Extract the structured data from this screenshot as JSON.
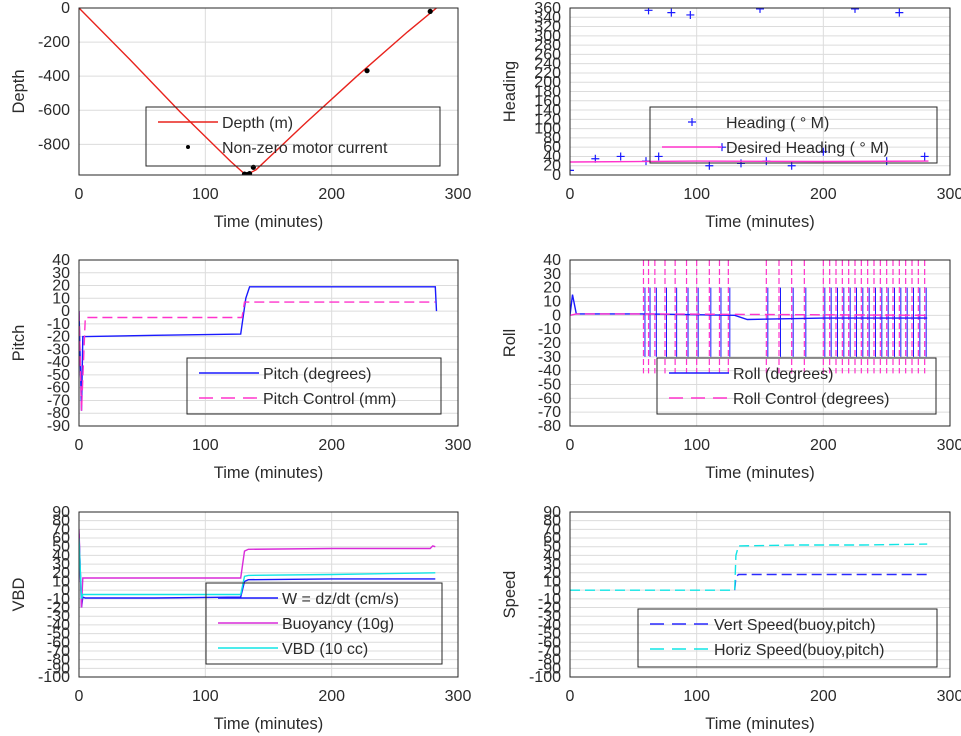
{
  "chart_data": [
    {
      "type": "line",
      "xlabel": "Time (minutes)",
      "ylabel": "Depth",
      "xlim": [
        0,
        300
      ],
      "ylim": [
        -980,
        0
      ],
      "xticks": [
        "0",
        "100",
        "200",
        "300"
      ],
      "yticks": [
        "0",
        "-200",
        "-400",
        "-600",
        "-800"
      ],
      "grid": true,
      "legend_position": "bottom-center",
      "series": [
        {
          "name": "Depth (m)",
          "kind": "line",
          "color": "#e8231d",
          "x": [
            0,
            40,
            80,
            120,
            132,
            140,
            180,
            220,
            260,
            283
          ],
          "y": [
            0,
            -300,
            -610,
            -900,
            -980,
            -950,
            -670,
            -400,
            -140,
            0
          ]
        },
        {
          "name": "Non-zero motor current",
          "kind": "points",
          "color": "#000000",
          "x": [
            131,
            133,
            135,
            138,
            228,
            278
          ],
          "y": [
            -975,
            -978,
            -972,
            -935,
            -368,
            -20
          ]
        }
      ]
    },
    {
      "type": "scatter",
      "xlabel": "Time (minutes)",
      "ylabel": "Heading",
      "xlim": [
        0,
        300
      ],
      "ylim": [
        0,
        360
      ],
      "xticks": [
        "0",
        "100",
        "200",
        "300"
      ],
      "yticks": [
        "0",
        "20",
        "40",
        "60",
        "80",
        "100",
        "120",
        "140",
        "160",
        "180",
        "200",
        "220",
        "240",
        "260",
        "280",
        "300",
        "320",
        "340",
        "360"
      ],
      "grid": true,
      "legend_position": "bottom-right",
      "series": [
        {
          "name": "Heading ( ° M)",
          "kind": "plus",
          "color": "#1a1aff",
          "x": [
            0,
            20,
            40,
            60,
            62,
            70,
            80,
            95,
            110,
            120,
            135,
            150,
            155,
            175,
            200,
            225,
            250,
            260,
            280
          ],
          "y": [
            10,
            35,
            40,
            30,
            355,
            40,
            350,
            345,
            20,
            60,
            25,
            358,
            30,
            20,
            50,
            358,
            30,
            350,
            40
          ]
        },
        {
          "name": "Desired Heading ( ° M)",
          "kind": "line",
          "color": "#ff33cc",
          "x": [
            0,
            100,
            200,
            283
          ],
          "y": [
            28,
            30,
            29,
            30
          ]
        }
      ]
    },
    {
      "type": "line",
      "xlabel": "Time (minutes)",
      "ylabel": "Pitch",
      "xlim": [
        0,
        300
      ],
      "ylim": [
        -90,
        40
      ],
      "xticks": [
        "0",
        "100",
        "200",
        "300"
      ],
      "yticks": [
        "40",
        "30",
        "20",
        "10",
        "0",
        "-10",
        "-20",
        "-30",
        "-40",
        "-50",
        "-60",
        "-70",
        "-80",
        "-90"
      ],
      "grid": true,
      "legend_position": "bottom-right",
      "series": [
        {
          "name": "Pitch (degrees)",
          "kind": "line",
          "color": "#1a1aff",
          "x": [
            0,
            2,
            3,
            5,
            60,
            128,
            132,
            135,
            200,
            282,
            283
          ],
          "y": [
            0,
            -78,
            -20,
            -20,
            -19,
            -18,
            10,
            19,
            19,
            19,
            0
          ]
        },
        {
          "name": "Pitch Control (mm)",
          "kind": "dash",
          "color": "#ff33cc",
          "x": [
            0,
            2,
            5,
            129,
            131,
            282
          ],
          "y": [
            0,
            -78,
            -5,
            -5,
            7,
            7
          ]
        }
      ]
    },
    {
      "type": "line",
      "xlabel": "Time (minutes)",
      "ylabel": "Roll",
      "xlim": [
        0,
        300
      ],
      "ylim": [
        -80,
        40
      ],
      "xticks": [
        "0",
        "100",
        "200",
        "300"
      ],
      "yticks": [
        "40",
        "30",
        "20",
        "10",
        "0",
        "-10",
        "-20",
        "-30",
        "-40",
        "-50",
        "-60",
        "-70",
        "-80"
      ],
      "grid": true,
      "legend_position": "bottom-right",
      "series": [
        {
          "name": "Roll (degrees)",
          "kind": "line",
          "color": "#1a1aff",
          "x": [
            0,
            2,
            5,
            60,
            130,
            140,
            200,
            282
          ],
          "y": [
            0,
            15,
            1,
            1,
            0,
            -3,
            -2,
            -2
          ]
        },
        {
          "name": "Roll Control (degrees)",
          "kind": "dash",
          "color": "#ff33cc",
          "x": [
            0,
            5,
            60,
            282
          ],
          "y": [
            0,
            1,
            1,
            0
          ]
        }
      ],
      "spike_times": [
        58,
        62,
        67,
        75,
        83,
        92,
        100,
        110,
        118,
        125,
        155,
        165,
        175,
        185,
        200,
        205,
        210,
        215,
        220,
        225,
        230,
        235,
        240,
        245,
        250,
        255,
        260,
        265,
        270,
        275,
        280
      ]
    },
    {
      "type": "line",
      "xlabel": "Time (minutes)",
      "ylabel": "VBD",
      "xlim": [
        0,
        300
      ],
      "ylim": [
        -100,
        90
      ],
      "xticks": [
        "0",
        "100",
        "200",
        "300"
      ],
      "yticks": [
        "90",
        "80",
        "70",
        "60",
        "50",
        "40",
        "30",
        "20",
        "10",
        "0",
        "-10",
        "-20",
        "-30",
        "-40",
        "-50",
        "-60",
        "-70",
        "-80",
        "-90",
        "-100"
      ],
      "grid": true,
      "legend_position": "bottom-right",
      "series": [
        {
          "name": "W = dz/dt (cm/s)",
          "kind": "line",
          "color": "#1a1aff",
          "x": [
            0,
            2,
            3,
            5,
            60,
            128,
            131,
            134,
            200,
            282
          ],
          "y": [
            65,
            -20,
            -8,
            -9,
            -9,
            -8,
            10,
            12,
            13,
            13
          ]
        },
        {
          "name": "Buoyancy (10g)",
          "kind": "line",
          "color": "#d92bd9",
          "x": [
            0,
            2,
            3,
            5,
            60,
            128,
            131,
            134,
            200,
            278,
            280,
            282
          ],
          "y": [
            70,
            -20,
            14,
            14,
            14,
            14,
            45,
            47,
            48,
            48,
            51,
            50
          ]
        },
        {
          "name": "VBD (10 cc)",
          "kind": "line",
          "color": "#11e5e5",
          "x": [
            0,
            2,
            3,
            5,
            60,
            128,
            131,
            134,
            200,
            282
          ],
          "y": [
            60,
            -10,
            -5,
            -5,
            -5,
            -5,
            16,
            17,
            18,
            20
          ]
        }
      ]
    },
    {
      "type": "line",
      "xlabel": "Time (minutes)",
      "ylabel": "Speed",
      "xlim": [
        0,
        300
      ],
      "ylim": [
        -100,
        90
      ],
      "xticks": [
        "0",
        "100",
        "200",
        "300"
      ],
      "yticks": [
        "90",
        "80",
        "70",
        "60",
        "50",
        "40",
        "30",
        "20",
        "10",
        "0",
        "-10",
        "-20",
        "-30",
        "-40",
        "-50",
        "-60",
        "-70",
        "-80",
        "-90",
        "-100"
      ],
      "grid": true,
      "legend_position": "bottom-right",
      "series": [
        {
          "name": "Vert Speed(buoy,pitch)",
          "kind": "dash",
          "color": "#2a2aff",
          "x": [
            130,
            131,
            133,
            180,
            230,
            282
          ],
          "y": [
            0,
            15,
            18,
            18,
            18,
            18
          ]
        },
        {
          "name": "Horiz Speed(buoy,pitch)",
          "kind": "dash",
          "color": "#11e5e5",
          "x": [
            0,
            130,
            131,
            133,
            180,
            230,
            282
          ],
          "y": [
            0,
            0,
            40,
            51,
            52,
            52,
            53
          ]
        }
      ]
    }
  ]
}
